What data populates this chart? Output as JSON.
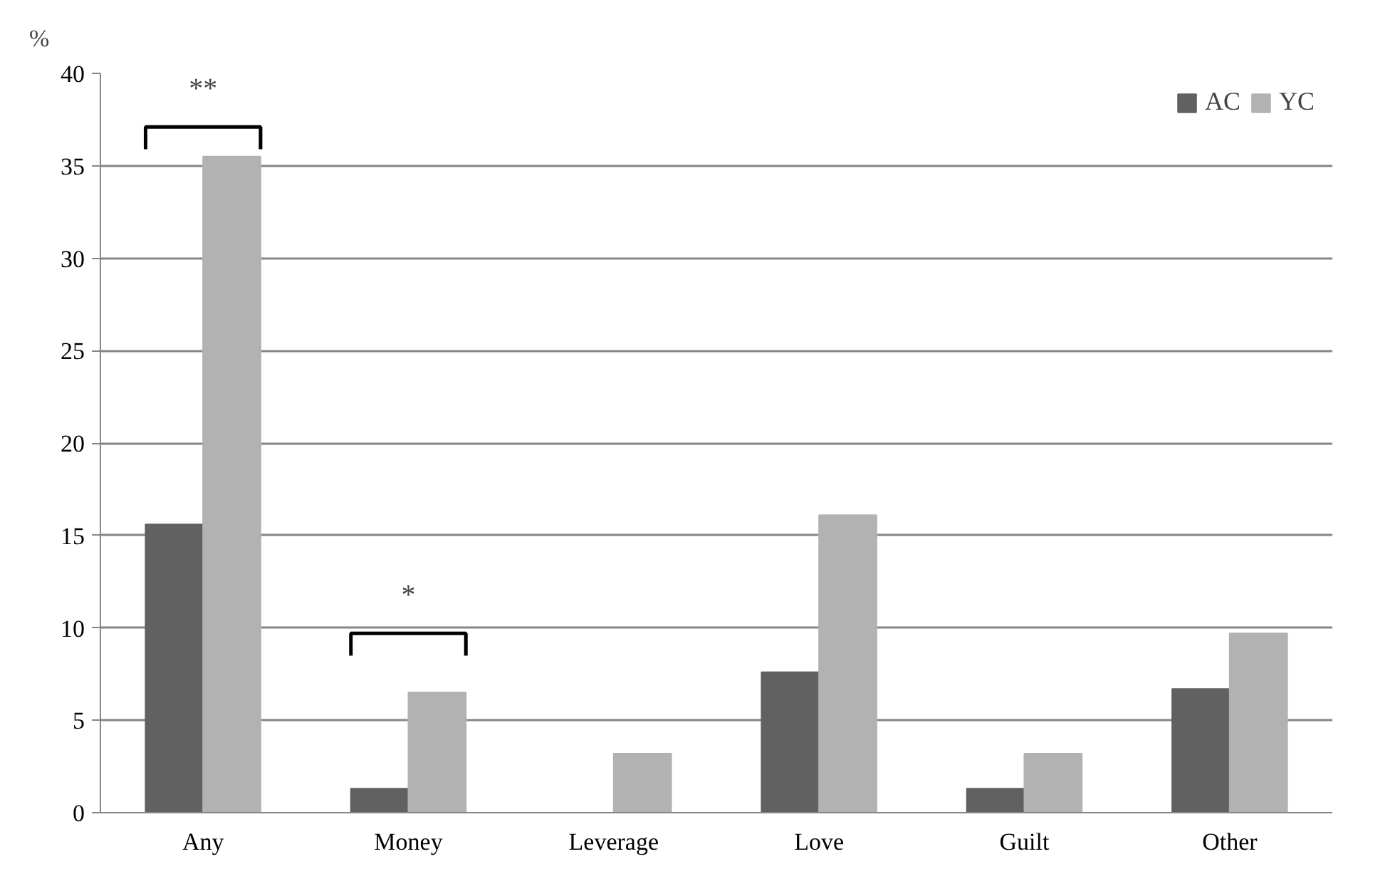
{
  "chart_data": {
    "type": "bar",
    "ylabel": "%",
    "categories": [
      "Any",
      "Money",
      "Leverage",
      "Love",
      "Guilt",
      "Other"
    ],
    "series": [
      {
        "name": "AC",
        "color": "#616161",
        "values": [
          15.6,
          1.3,
          0,
          7.6,
          1.3,
          6.7
        ]
      },
      {
        "name": "YC",
        "color": "#b2b2b2",
        "values": [
          35.5,
          6.5,
          3.2,
          16.1,
          3.2,
          9.7
        ]
      }
    ],
    "ylim": [
      0,
      40
    ],
    "yticks": [
      0,
      5,
      10,
      15,
      20,
      25,
      30,
      35,
      40
    ],
    "grid": "y",
    "legend": "top right",
    "annotations": [
      "**",
      "*"
    ]
  }
}
